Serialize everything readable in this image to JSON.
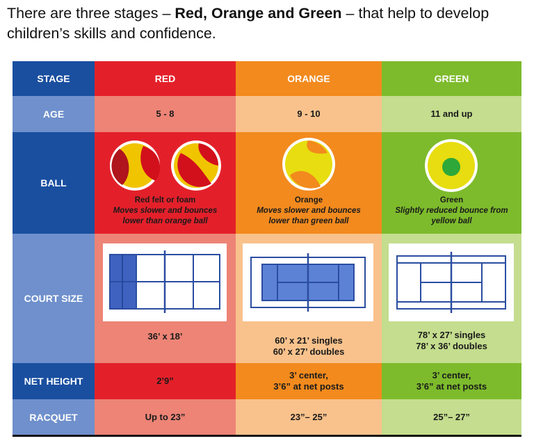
{
  "intro": {
    "part1": "There are three stages – ",
    "bold": "Red, Orange and Green",
    "part2": " – that help to develop children’s skills and confidence."
  },
  "table": {
    "headers": {
      "stage": "STAGE",
      "red": "RED",
      "orange": "ORANGE",
      "green": "GREEN"
    },
    "rows": {
      "age": {
        "label": "AGE",
        "red": "5 - 8",
        "orange": "9 - 10",
        "green": "11 and up"
      },
      "ball": {
        "label": "BALL",
        "red": {
          "name": "Red felt or foam",
          "line2": "Moves slower and bounces",
          "line3": "lower than orange ball"
        },
        "orange": {
          "name": "Orange",
          "line2": "Moves slower and bounces",
          "line3": "lower than green ball"
        },
        "green": {
          "name": "Green",
          "line2": "Slightly reduced bounce from",
          "line3": "yellow ball"
        }
      },
      "court": {
        "label": "COURT SIZE",
        "red": [
          "36’ x 18’"
        ],
        "orange": [
          "60’ x 21’ singles",
          "60’ x 27’ doubles"
        ],
        "green": [
          "78’ x 27’ singles",
          "78’ x 36’ doubles"
        ]
      },
      "net": {
        "label": "NET HEIGHT",
        "red": [
          "2’9”"
        ],
        "orange": [
          "3’ center,",
          "3’6” at net posts"
        ],
        "green": [
          "3’ center,",
          "3’6” at net posts"
        ]
      },
      "racquet": {
        "label": "RACQUET",
        "red": "Up to 23”",
        "orange": "23”– 25”",
        "green": "25”– 27”"
      }
    }
  },
  "colors": {
    "blue_dark": "#1a4fa0",
    "blue_light": "#6f90cc",
    "red_dark": "#e3202a",
    "red_light": "#ed8476",
    "orange_dark": "#f28a1e",
    "orange_light": "#f9c28c",
    "green_dark": "#7dbb2c",
    "green_light": "#c4dd8e",
    "court_line": "#2a4da0",
    "court_fill": "#5c82d6"
  }
}
